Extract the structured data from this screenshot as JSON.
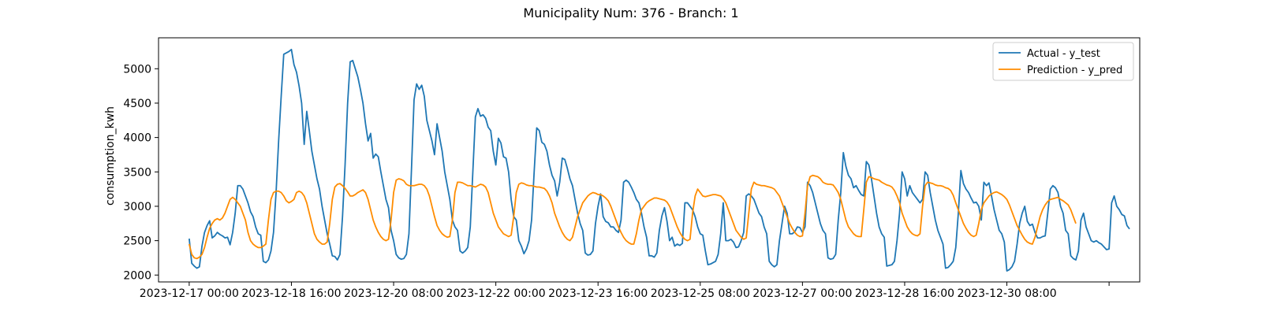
{
  "chart_data": {
    "type": "line",
    "title": "Municipality Num: 376 - Branch: 1",
    "xlabel": "",
    "ylabel": "consumption_kwh",
    "grid": false,
    "legend_position": "top-right",
    "x_start": "2023-12-17 00:00",
    "x_step_hours": 1,
    "x_tick_labels": [
      "2023-12-17 00:00",
      "2023-12-18 16:00",
      "2023-12-20 08:00",
      "2023-12-22 00:00",
      "2023-12-23 16:00",
      "2023-12-25 08:00",
      "2023-12-27 00:00",
      "2023-12-28 16:00",
      "2023-12-30 08:00",
      ""
    ],
    "xlim": [
      "2023-12-16 12:00",
      "2024-01-01 12:00"
    ],
    "ylim": [
      1900,
      5450
    ],
    "y_ticks": [
      2000,
      2500,
      3000,
      3500,
      4000,
      4500,
      5000
    ],
    "series": [
      {
        "name": "Actual - y_test",
        "color": "#1f77b4",
        "values": [
          2530,
          2170,
          2130,
          2100,
          2120,
          2420,
          2620,
          2720,
          2790,
          2540,
          2570,
          2620,
          2590,
          2570,
          2540,
          2550,
          2440,
          2620,
          2900,
          3300,
          3300,
          3250,
          3150,
          3050,
          2920,
          2850,
          2700,
          2600,
          2580,
          2200,
          2180,
          2220,
          2350,
          2620,
          3200,
          3950,
          4600,
          5210,
          5230,
          5250,
          5280,
          5060,
          4950,
          4750,
          4500,
          3900,
          4380,
          4100,
          3800,
          3600,
          3400,
          3250,
          3000,
          2800,
          2600,
          2450,
          2280,
          2270,
          2220,
          2300,
          2850,
          3600,
          4500,
          5100,
          5120,
          5000,
          4880,
          4700,
          4500,
          4200,
          3950,
          4060,
          3700,
          3760,
          3720,
          3500,
          3300,
          3100,
          2980,
          2650,
          2500,
          2300,
          2250,
          2230,
          2240,
          2300,
          2600,
          3550,
          4550,
          4780,
          4700,
          4760,
          4600,
          4250,
          4100,
          3950,
          3750,
          4200,
          4000,
          3800,
          3500,
          3300,
          3100,
          2800,
          2700,
          2650,
          2350,
          2320,
          2350,
          2400,
          2700,
          3500,
          4300,
          4420,
          4310,
          4330,
          4280,
          4150,
          4100,
          3800,
          3600,
          3990,
          3920,
          3720,
          3700,
          3500,
          3100,
          2850,
          2800,
          2500,
          2420,
          2310,
          2380,
          2500,
          2800,
          3500,
          4140,
          4100,
          3930,
          3900,
          3800,
          3600,
          3450,
          3370,
          3150,
          3350,
          3700,
          3680,
          3550,
          3400,
          3300,
          3100,
          2900,
          2750,
          2650,
          2320,
          2290,
          2300,
          2350,
          2750,
          3000,
          3180,
          2850,
          2780,
          2760,
          2700,
          2700,
          2650,
          2620,
          2800,
          3350,
          3380,
          3350,
          3280,
          3200,
          3100,
          3050,
          2900,
          2700,
          2550,
          2280,
          2280,
          2260,
          2320,
          2650,
          2860,
          2980,
          2780,
          2500,
          2550,
          2420,
          2450,
          2430,
          2460,
          3050,
          3050,
          3000,
          2950,
          2850,
          2700,
          2600,
          2580,
          2350,
          2150,
          2160,
          2180,
          2200,
          2300,
          2600,
          3050,
          2500,
          2500,
          2520,
          2480,
          2400,
          2410,
          2500,
          2620,
          3150,
          3180,
          3150,
          3100,
          3000,
          2900,
          2850,
          2700,
          2600,
          2200,
          2150,
          2120,
          2150,
          2500,
          2750,
          3000,
          2900,
          2600,
          2600,
          2630,
          2700,
          2690,
          2620,
          2700,
          3350,
          3300,
          3200,
          3050,
          2900,
          2750,
          2650,
          2600,
          2250,
          2230,
          2240,
          2300,
          2800,
          3200,
          3780,
          3580,
          3450,
          3400,
          3270,
          3300,
          3230,
          3170,
          3150,
          3650,
          3600,
          3400,
          3150,
          2900,
          2700,
          2600,
          2550,
          2130,
          2140,
          2150,
          2200,
          2500,
          2900,
          3500,
          3400,
          3150,
          3300,
          3200,
          3150,
          3100,
          3050,
          3100,
          3500,
          3450,
          3200,
          3000,
          2800,
          2650,
          2550,
          2450,
          2100,
          2110,
          2150,
          2200,
          2400,
          2900,
          3520,
          3330,
          3250,
          3200,
          3120,
          3050,
          3060,
          3000,
          2800,
          3350,
          3300,
          3340,
          3150,
          2950,
          2800,
          2650,
          2600,
          2480,
          2060,
          2080,
          2120,
          2200,
          2450,
          2750,
          2900,
          3000,
          2780,
          2720,
          2740,
          2620,
          2540,
          2540,
          2560,
          2570,
          2900,
          3250,
          3300,
          3270,
          3200,
          3000,
          2900,
          2650,
          2600,
          2280,
          2240,
          2220,
          2350,
          2800,
          2900,
          2700,
          2600,
          2500,
          2480,
          2500,
          2470,
          2450,
          2410,
          2370,
          2380,
          3050,
          3150,
          3000,
          2950,
          2880,
          2860,
          2720,
          2670
        ]
      },
      {
        "name": "Prediction - y_pred",
        "color": "#ff8c00",
        "values": [
          2450,
          2300,
          2250,
          2240,
          2260,
          2300,
          2400,
          2550,
          2680,
          2750,
          2800,
          2820,
          2800,
          2830,
          2900,
          3000,
          3100,
          3130,
          3100,
          3050,
          3000,
          2900,
          2800,
          2620,
          2500,
          2450,
          2420,
          2400,
          2400,
          2420,
          2450,
          2800,
          3100,
          3200,
          3220,
          3220,
          3200,
          3150,
          3080,
          3050,
          3070,
          3100,
          3200,
          3220,
          3200,
          3150,
          3050,
          2900,
          2750,
          2600,
          2520,
          2480,
          2450,
          2450,
          2480,
          2750,
          3100,
          3280,
          3320,
          3330,
          3300,
          3260,
          3210,
          3150,
          3150,
          3170,
          3200,
          3220,
          3240,
          3200,
          3100,
          2950,
          2800,
          2700,
          2620,
          2560,
          2520,
          2500,
          2520,
          2800,
          3200,
          3380,
          3400,
          3390,
          3370,
          3320,
          3300,
          3300,
          3300,
          3310,
          3320,
          3320,
          3300,
          3250,
          3150,
          3000,
          2850,
          2720,
          2650,
          2600,
          2570,
          2550,
          2560,
          2800,
          3200,
          3350,
          3350,
          3340,
          3320,
          3300,
          3300,
          3290,
          3280,
          3300,
          3320,
          3310,
          3280,
          3200,
          3050,
          2900,
          2800,
          2700,
          2650,
          2600,
          2580,
          2560,
          2580,
          2850,
          3200,
          3320,
          3340,
          3330,
          3310,
          3300,
          3300,
          3290,
          3280,
          3280,
          3270,
          3260,
          3220,
          3150,
          3050,
          2900,
          2800,
          2700,
          2620,
          2560,
          2520,
          2500,
          2550,
          2700,
          2850,
          2950,
          3050,
          3100,
          3150,
          3180,
          3200,
          3190,
          3170,
          3170,
          3150,
          3120,
          3080,
          3000,
          2900,
          2800,
          2700,
          2620,
          2550,
          2500,
          2470,
          2450,
          2450,
          2600,
          2800,
          2950,
          3000,
          3050,
          3080,
          3100,
          3120,
          3120,
          3110,
          3100,
          3090,
          3060,
          3000,
          2900,
          2800,
          2700,
          2620,
          2560,
          2520,
          2500,
          2520,
          2900,
          3150,
          3250,
          3200,
          3150,
          3140,
          3150,
          3160,
          3170,
          3170,
          3160,
          3150,
          3110,
          3050,
          2950,
          2850,
          2750,
          2650,
          2600,
          2550,
          2520,
          2540,
          2900,
          3250,
          3350,
          3320,
          3310,
          3300,
          3300,
          3290,
          3280,
          3270,
          3250,
          3200,
          3150,
          3050,
          2950,
          2850,
          2750,
          2680,
          2620,
          2580,
          2560,
          2570,
          2900,
          3300,
          3430,
          3450,
          3440,
          3430,
          3400,
          3350,
          3330,
          3320,
          3320,
          3310,
          3260,
          3200,
          3100,
          2950,
          2800,
          2700,
          2650,
          2600,
          2570,
          2560,
          2560,
          2950,
          3350,
          3430,
          3420,
          3400,
          3390,
          3380,
          3350,
          3330,
          3310,
          3300,
          3280,
          3230,
          3150,
          3050,
          2900,
          2800,
          2700,
          2640,
          2600,
          2580,
          2570,
          2600,
          3000,
          3300,
          3350,
          3340,
          3330,
          3310,
          3300,
          3300,
          3290,
          3270,
          3260,
          3230,
          3160,
          3050,
          2950,
          2850,
          2750,
          2680,
          2620,
          2580,
          2560,
          2580,
          2750,
          2950,
          3050,
          3100,
          3150,
          3180,
          3200,
          3210,
          3190,
          3170,
          3140,
          3100,
          3020,
          2920,
          2820,
          2720,
          2650,
          2580,
          2520,
          2480,
          2460,
          2450,
          2550,
          2700,
          2850,
          2950,
          3020,
          3070,
          3100,
          3110,
          3120,
          3130,
          3100,
          3080,
          3050,
          3020,
          2950,
          2850,
          2750
        ]
      }
    ]
  }
}
